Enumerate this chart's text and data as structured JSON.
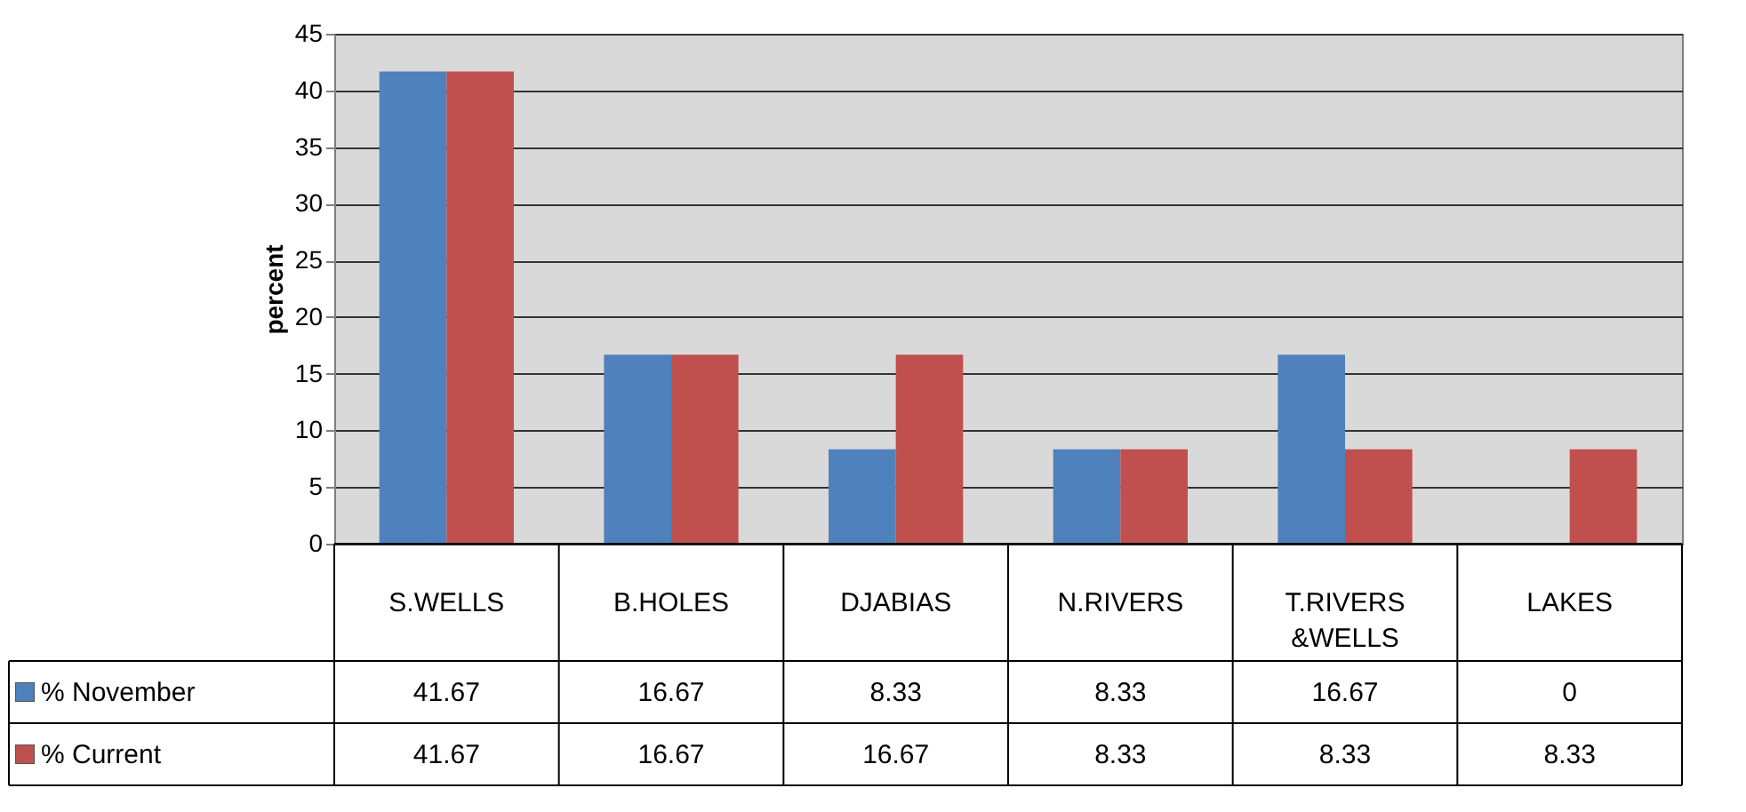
{
  "chart_data": {
    "type": "bar",
    "ylabel": "percent",
    "categories": [
      "S.WELLS",
      "B.HOLES",
      "DJABIAS",
      "N.RIVERS",
      "T.RIVERS &WELLS",
      "LAKES"
    ],
    "series": [
      {
        "name": "% November",
        "color": "#4f81bd",
        "values": [
          41.67,
          16.67,
          8.33,
          8.33,
          16.67,
          0
        ]
      },
      {
        "name": "% Current",
        "color": "#c0504d",
        "values": [
          41.67,
          16.67,
          16.67,
          8.33,
          8.33,
          8.33
        ]
      }
    ],
    "ylim": [
      0,
      45
    ],
    "yticks": [
      0,
      5,
      10,
      15,
      20,
      25,
      30,
      35,
      40,
      45
    ],
    "grid": "y",
    "legend": "bottom left",
    "data_labels": true
  }
}
